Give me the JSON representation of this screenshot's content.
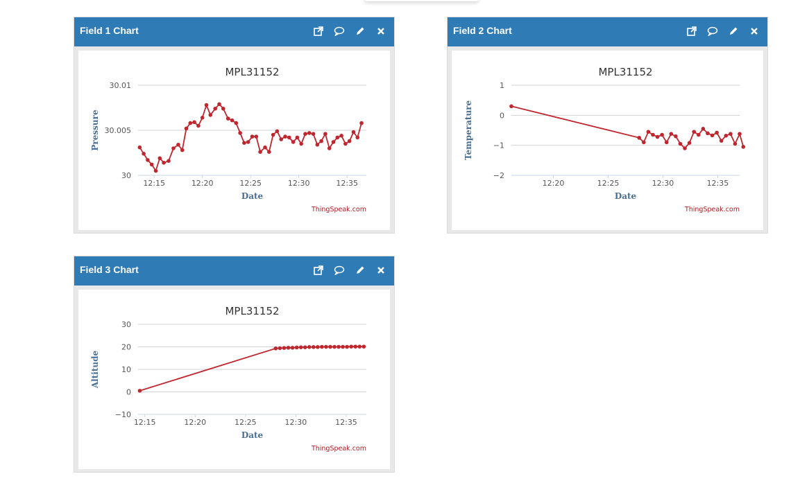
{
  "panels": [
    {
      "title": "Field 1 Chart",
      "chart_data": {
        "type": "line",
        "title": "MPL31152",
        "xlabel": "Date",
        "ylabel": "Pressure",
        "credit": "ThingSpeak.com",
        "ylim": [
          30,
          30.01
        ],
        "yticks": [
          "30",
          "30.005",
          "30.01"
        ],
        "xlim": [
          "12:13:20",
          "12:37:00"
        ],
        "xticks": [
          "12:15",
          "12:20",
          "12:25",
          "12:30",
          "12:35"
        ],
        "color": "#c0262d",
        "points": [
          [
            "12:13:30",
            30.0031
          ],
          [
            "12:13:55",
            30.0024
          ],
          [
            "12:14:20",
            30.0017
          ],
          [
            "12:14:45",
            30.0012
          ],
          [
            "12:15:10",
            30.0005
          ],
          [
            "12:15:35",
            30.0019
          ],
          [
            "12:16:00",
            30.0014
          ],
          [
            "12:16:30",
            30.0016
          ],
          [
            "12:17:00",
            30.003
          ],
          [
            "12:17:30",
            30.0034
          ],
          [
            "12:17:55",
            30.0028
          ],
          [
            "12:18:20",
            30.0052
          ],
          [
            "12:18:45",
            30.0058
          ],
          [
            "12:19:10",
            30.0059
          ],
          [
            "12:19:35",
            30.0055
          ],
          [
            "12:20:00",
            30.0064
          ],
          [
            "12:20:25",
            30.0078
          ],
          [
            "12:20:50",
            30.0067
          ],
          [
            "12:21:20",
            30.0074
          ],
          [
            "12:21:45",
            30.0079
          ],
          [
            "12:22:10",
            30.0074
          ],
          [
            "12:22:40",
            30.0063
          ],
          [
            "12:23:05",
            30.0061
          ],
          [
            "12:23:30",
            30.0058
          ],
          [
            "12:23:55",
            30.0047
          ],
          [
            "12:24:20",
            30.0036
          ],
          [
            "12:24:45",
            30.0037
          ],
          [
            "12:25:10",
            30.0043
          ],
          [
            "12:25:35",
            30.0043
          ],
          [
            "12:26:00",
            30.0026
          ],
          [
            "12:26:30",
            30.0031
          ],
          [
            "12:26:55",
            30.0026
          ],
          [
            "12:27:20",
            30.0045
          ],
          [
            "12:27:45",
            30.0049
          ],
          [
            "12:28:10",
            30.004
          ],
          [
            "12:28:35",
            30.0043
          ],
          [
            "12:29:00",
            30.0042
          ],
          [
            "12:29:25",
            30.0037
          ],
          [
            "12:29:50",
            30.0042
          ],
          [
            "12:30:15",
            30.0035
          ],
          [
            "12:30:40",
            30.0046
          ],
          [
            "12:31:05",
            30.0047
          ],
          [
            "12:31:30",
            30.0046
          ],
          [
            "12:31:55",
            30.0034
          ],
          [
            "12:32:20",
            30.0038
          ],
          [
            "12:32:45",
            30.0046
          ],
          [
            "12:33:10",
            30.003
          ],
          [
            "12:33:35",
            30.0037
          ],
          [
            "12:34:00",
            30.0042
          ],
          [
            "12:34:25",
            30.0044
          ],
          [
            "12:34:50",
            30.0035
          ],
          [
            "12:35:15",
            30.0038
          ],
          [
            "12:35:40",
            30.0048
          ],
          [
            "12:36:05",
            30.0042
          ],
          [
            "12:36:30",
            30.0058
          ]
        ]
      }
    },
    {
      "title": "Field 2 Chart",
      "chart_data": {
        "type": "line",
        "title": "MPL31152",
        "xlabel": "Date",
        "ylabel": "Temperature",
        "credit": "ThingSpeak.com",
        "ylim": [
          -2,
          1
        ],
        "yticks": [
          "1",
          "0",
          "−1",
          "−2"
        ],
        "xlim": [
          "12:16:10",
          "12:37:00"
        ],
        "xticks": [
          "12:20",
          "12:25",
          "12:30",
          "12:35"
        ],
        "color": "#c0262d",
        "points": [
          [
            "12:16:10",
            0.3
          ],
          [
            "12:27:50",
            -0.75
          ],
          [
            "12:28:15",
            -0.9
          ],
          [
            "12:28:40",
            -0.55
          ],
          [
            "12:29:05",
            -0.65
          ],
          [
            "12:29:30",
            -0.72
          ],
          [
            "12:29:55",
            -0.65
          ],
          [
            "12:30:20",
            -0.9
          ],
          [
            "12:30:45",
            -0.62
          ],
          [
            "12:31:10",
            -0.7
          ],
          [
            "12:31:35",
            -0.95
          ],
          [
            "12:32:00",
            -1.1
          ],
          [
            "12:32:25",
            -0.92
          ],
          [
            "12:32:50",
            -0.55
          ],
          [
            "12:33:15",
            -0.65
          ],
          [
            "12:33:40",
            -0.45
          ],
          [
            "12:34:05",
            -0.6
          ],
          [
            "12:34:30",
            -0.67
          ],
          [
            "12:34:55",
            -0.58
          ],
          [
            "12:35:20",
            -0.85
          ],
          [
            "12:35:45",
            -0.68
          ],
          [
            "12:36:10",
            -0.62
          ],
          [
            "12:36:35",
            -0.95
          ],
          [
            "12:37:00",
            -0.62
          ],
          [
            "12:37:20",
            -1.05
          ]
        ]
      }
    },
    {
      "title": "Field 3 Chart",
      "chart_data": {
        "type": "line",
        "title": "MPL31152",
        "xlabel": "Date",
        "ylabel": "Altitude",
        "credit": "ThingSpeak.com",
        "ylim": [
          -10,
          30
        ],
        "yticks": [
          "30",
          "20",
          "10",
          "0",
          "−10"
        ],
        "xlim": [
          "12:14:20",
          "12:37:00"
        ],
        "xticks": [
          "12:15",
          "12:20",
          "12:25",
          "12:30",
          "12:35"
        ],
        "color": "#c0262d",
        "points": [
          [
            "12:14:30",
            0.5
          ],
          [
            "12:28:00",
            19.3
          ],
          [
            "12:28:25",
            19.4
          ],
          [
            "12:28:50",
            19.5
          ],
          [
            "12:29:15",
            19.6
          ],
          [
            "12:29:40",
            19.6
          ],
          [
            "12:30:05",
            19.7
          ],
          [
            "12:30:30",
            19.8
          ],
          [
            "12:30:55",
            19.8
          ],
          [
            "12:31:20",
            19.9
          ],
          [
            "12:31:45",
            19.9
          ],
          [
            "12:32:10",
            19.9
          ],
          [
            "12:32:35",
            20.0
          ],
          [
            "12:33:00",
            20.0
          ],
          [
            "12:33:25",
            20.0
          ],
          [
            "12:33:50",
            20.0
          ],
          [
            "12:34:15",
            20.0
          ],
          [
            "12:34:40",
            20.0
          ],
          [
            "12:35:05",
            20.0
          ],
          [
            "12:35:30",
            20.1
          ],
          [
            "12:35:55",
            20.1
          ],
          [
            "12:36:20",
            20.1
          ],
          [
            "12:36:45",
            20.1
          ]
        ]
      }
    }
  ],
  "icons": [
    "external-link-icon",
    "comment-icon",
    "edit-pencil-icon",
    "close-icon"
  ]
}
